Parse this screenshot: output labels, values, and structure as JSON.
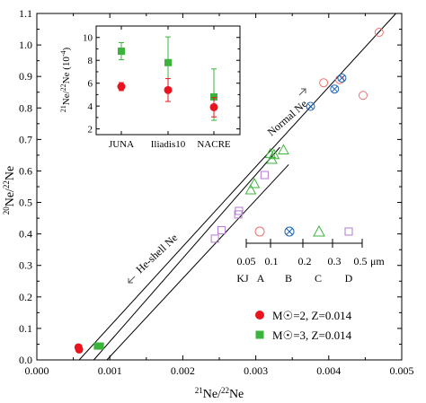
{
  "chart_data": [
    {
      "type": "scatter",
      "xlabel_main": "Ne",
      "xlabel_sup1": "21",
      "xlabel_sup2": "22",
      "ylabel_main": "Ne",
      "ylabel_sup1": "20",
      "ylabel_sup2": "22",
      "xlim": [
        0,
        0.005
      ],
      "ylim": [
        0,
        1.1
      ],
      "xticks": [
        "0.000",
        "0.001",
        "0.002",
        "0.003",
        "0.004",
        "0.005"
      ],
      "xtick_values": [
        0,
        0.001,
        0.002,
        0.003,
        0.004,
        0.005
      ],
      "yticks": [
        "0.0",
        "0.1",
        "0.2",
        "0.3",
        "0.4",
        "0.5",
        "0.6",
        "0.7",
        "0.8",
        "0.9",
        "1.0",
        "1.1"
      ],
      "ytick_values": [
        0,
        0.1,
        0.2,
        0.3,
        0.4,
        0.5,
        0.6,
        0.7,
        0.8,
        0.9,
        1.0,
        1.1
      ],
      "lines": [
        {
          "name": "normal-ne-line",
          "points": [
            [
              0.00058,
              0
            ],
            [
              0.00492,
              1.1
            ]
          ]
        },
        {
          "name": "he-shell-line-1",
          "points": [
            [
              0.00078,
              0
            ],
            [
              0.00333,
              0.675
            ]
          ]
        },
        {
          "name": "he-shell-line-2",
          "points": [
            [
              0.00096,
              0
            ],
            [
              0.00345,
              0.62
            ]
          ]
        }
      ],
      "annotations": {
        "normal": "Normal Ne",
        "heshell": "He-shell Ne"
      },
      "series": [
        {
          "name": "M☉=2, Z=0.014",
          "color": "#e8141e",
          "marker": "circle-filled",
          "points": [
            [
              0.00057,
              0.04
            ],
            [
              0.00058,
              0.033
            ]
          ]
        },
        {
          "name": "M☉=3, Z=0.014",
          "color": "#3cb43c",
          "marker": "square-filled",
          "points": [
            [
              0.00083,
              0.044
            ],
            [
              0.00087,
              0.044
            ]
          ]
        },
        {
          "name": "KJ",
          "color": "#f07070",
          "marker": "circle-open",
          "points": [
            [
              0.00447,
              0.84
            ],
            [
              0.00469,
              1.04
            ],
            [
              0.00393,
              0.88
            ],
            [
              0.00415,
              0.89
            ]
          ]
        },
        {
          "name": "A",
          "color": "#1c64b4",
          "marker": "circle-cross",
          "points": [
            [
              0.00375,
              0.805
            ],
            [
              0.00408,
              0.86
            ],
            [
              0.00418,
              0.895
            ]
          ]
        },
        {
          "name": "C",
          "color": "#3cb43c",
          "marker": "triangle-open",
          "points": [
            [
              0.00322,
              0.637
            ],
            [
              0.00338,
              0.667
            ],
            [
              0.0032,
              0.655
            ],
            [
              0.00298,
              0.56
            ],
            [
              0.00325,
              0.652
            ],
            [
              0.00293,
              0.54
            ]
          ]
        },
        {
          "name": "D",
          "color": "#b478d2",
          "marker": "square-open",
          "points": [
            [
              0.00312,
              0.587
            ],
            [
              0.00277,
              0.473
            ],
            [
              0.00276,
              0.462
            ],
            [
              0.00253,
              0.412
            ],
            [
              0.00244,
              0.385
            ]
          ]
        }
      ],
      "legend": {
        "placement": "bottom-right",
        "entries": [
          "M☉=2, Z=0.014",
          "M☉=3, Z=0.014"
        ]
      },
      "size_scale": {
        "ticks": [
          "0.05",
          "0.1",
          "0.2",
          "0.3",
          "0.5",
          "μm"
        ],
        "letters": [
          "KJ",
          "A",
          "B",
          "C",
          "D"
        ]
      }
    },
    {
      "type": "scatter",
      "ylabel_main": "Ne",
      "ylabel_sup1": "21",
      "ylabel_sup2": "22",
      "ylabel_unit": "(10",
      "ylabel_unit_sup": "-4",
      "ylabel_unit_close": ")",
      "categories": [
        "JUNA",
        "Iliadis10",
        "NACRE"
      ],
      "ylim": [
        1.5,
        11
      ],
      "yticks": [
        "2",
        "4",
        "6",
        "8",
        "10"
      ],
      "ytick_values": [
        2,
        4,
        6,
        8,
        10
      ],
      "series": [
        {
          "name": "M☉=2",
          "color": "#e8141e",
          "marker": "circle-filled",
          "values": [
            5.7,
            5.4,
            3.9
          ],
          "err_low": [
            0.35,
            1.0,
            0.85
          ],
          "err_high": [
            0.35,
            1.0,
            0.85
          ]
        },
        {
          "name": "M☉=3",
          "color": "#3cb43c",
          "marker": "square-filled",
          "values": [
            8.8,
            7.8,
            4.8
          ],
          "err_low": [
            0.75,
            2.25,
            2.05
          ],
          "err_high": [
            0.75,
            2.25,
            2.45
          ]
        }
      ]
    }
  ]
}
